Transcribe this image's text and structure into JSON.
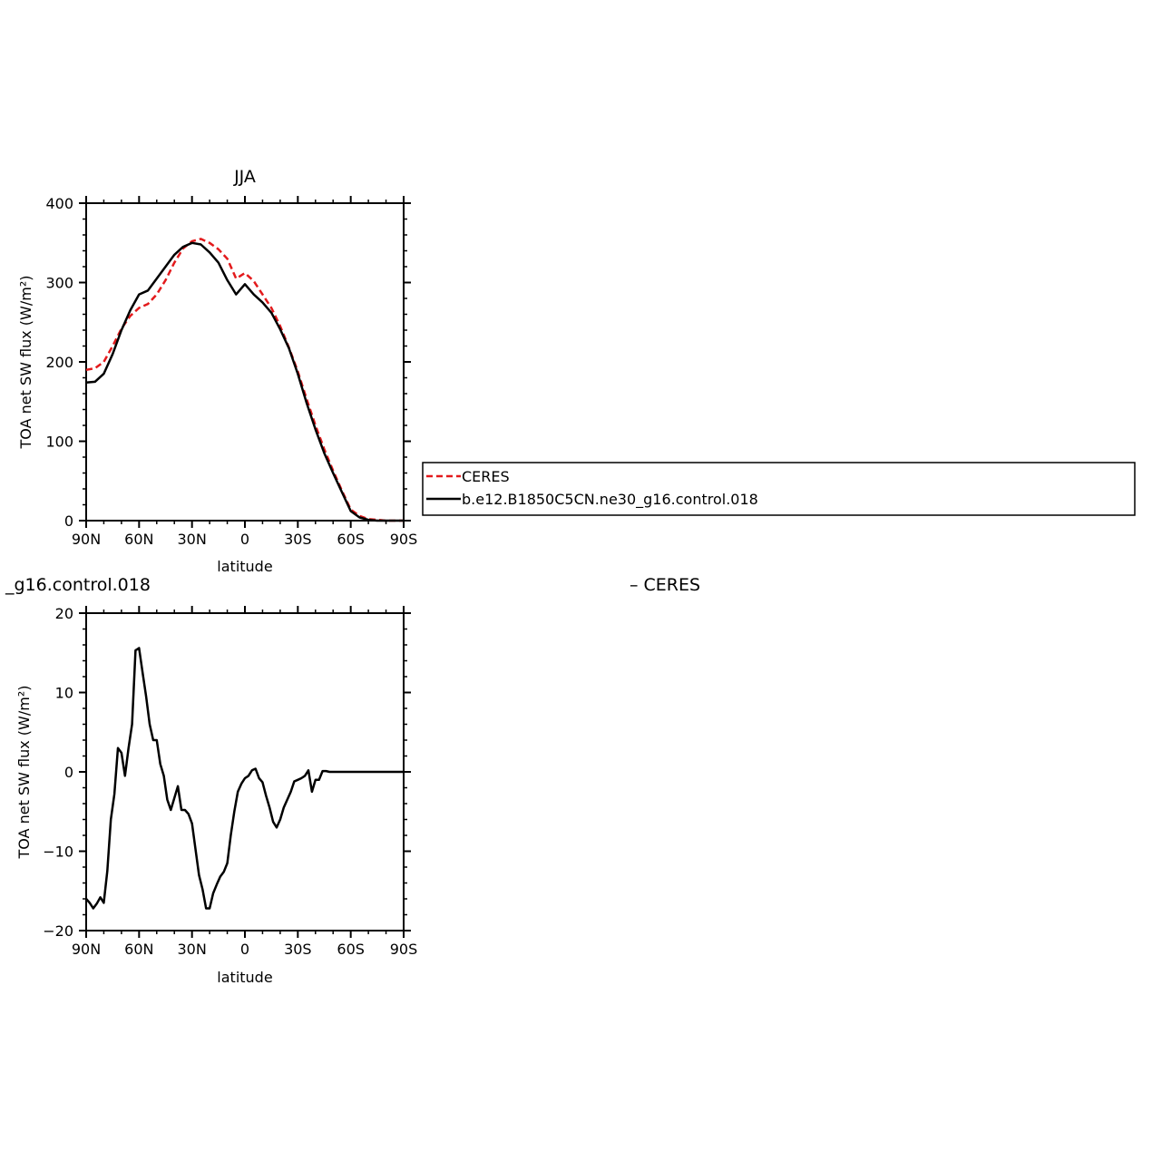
{
  "chart_data": [
    {
      "type": "line",
      "title": "JJA",
      "xlabel": "latitude",
      "ylabel": "TOA net SW flux (W/m²)",
      "xlim": [
        90,
        -90
      ],
      "ylim": [
        0,
        400
      ],
      "x_ticks": [
        {
          "value": 90,
          "label": "90N"
        },
        {
          "value": 60,
          "label": "60N"
        },
        {
          "value": 30,
          "label": "30N"
        },
        {
          "value": 0,
          "label": "0"
        },
        {
          "value": -30,
          "label": "30S"
        },
        {
          "value": -60,
          "label": "60S"
        },
        {
          "value": -90,
          "label": "90S"
        }
      ],
      "y_ticks": [
        {
          "value": 0,
          "label": "0"
        },
        {
          "value": 100,
          "label": "100"
        },
        {
          "value": 200,
          "label": "200"
        },
        {
          "value": 300,
          "label": "300"
        },
        {
          "value": 400,
          "label": "400"
        }
      ],
      "legend": {
        "placement": "right",
        "entries": [
          {
            "label": "CERES",
            "color": "#e31a1c",
            "dash": true
          },
          {
            "label": "b.e12.B1850C5CN.ne30_g16.control.018",
            "color": "#000000",
            "dash": false
          }
        ]
      },
      "series": [
        {
          "name": "CERES",
          "color": "#e31a1c",
          "dash": true,
          "x": [
            90,
            85,
            80,
            75,
            70,
            65,
            60,
            55,
            50,
            45,
            40,
            35,
            30,
            25,
            20,
            15,
            10,
            5,
            0,
            -5,
            -10,
            -15,
            -20,
            -25,
            -30,
            -35,
            -40,
            -45,
            -50,
            -55,
            -60,
            -65,
            -70,
            -75,
            -80,
            -85,
            -90
          ],
          "y": [
            190,
            192,
            200,
            220,
            242,
            258,
            268,
            273,
            285,
            303,
            325,
            343,
            352,
            355,
            350,
            342,
            330,
            305,
            312,
            302,
            285,
            268,
            245,
            218,
            188,
            153,
            120,
            90,
            63,
            38,
            14,
            6,
            2,
            1,
            0,
            0,
            0
          ]
        },
        {
          "name": "b.e12.B1850C5CN.ne30_g16.control.018",
          "color": "#000000",
          "dash": false,
          "x": [
            90,
            85,
            80,
            75,
            70,
            65,
            60,
            55,
            50,
            45,
            40,
            35,
            30,
            25,
            20,
            15,
            10,
            5,
            0,
            -5,
            -10,
            -15,
            -20,
            -25,
            -30,
            -35,
            -40,
            -45,
            -50,
            -55,
            -60,
            -65,
            -70,
            -75,
            -80,
            -85,
            -90
          ],
          "y": [
            174,
            175,
            185,
            210,
            240,
            265,
            285,
            290,
            305,
            320,
            335,
            345,
            350,
            348,
            338,
            325,
            303,
            285,
            298,
            285,
            275,
            262,
            241,
            217,
            185,
            148,
            115,
            85,
            60,
            36,
            12,
            4,
            1,
            0,
            0,
            0,
            0
          ]
        }
      ]
    },
    {
      "type": "line",
      "title": "_g16.control.018",
      "title_right": "– CERES",
      "xlabel": "latitude",
      "ylabel": "TOA net SW flux (W/m²)",
      "xlim": [
        90,
        -90
      ],
      "ylim": [
        -20,
        20
      ],
      "x_ticks": [
        {
          "value": 90,
          "label": "90N"
        },
        {
          "value": 60,
          "label": "60N"
        },
        {
          "value": 30,
          "label": "30N"
        },
        {
          "value": 0,
          "label": "0"
        },
        {
          "value": -30,
          "label": "30S"
        },
        {
          "value": -60,
          "label": "60S"
        },
        {
          "value": -90,
          "label": "90S"
        }
      ],
      "y_ticks": [
        {
          "value": -20,
          "label": "−20"
        },
        {
          "value": -10,
          "label": "−10"
        },
        {
          "value": 0,
          "label": "0"
        },
        {
          "value": 10,
          "label": "10"
        },
        {
          "value": 20,
          "label": "20"
        }
      ],
      "series": [
        {
          "name": "",
          "color": "#000000",
          "dash": false,
          "x": [
            90,
            88,
            86,
            84,
            82,
            80,
            78,
            76,
            74,
            72,
            70,
            68,
            66,
            64,
            62,
            60,
            58,
            56,
            54,
            52,
            50,
            48,
            46,
            44,
            42,
            40,
            38,
            36,
            34,
            32,
            30,
            28,
            26,
            24,
            22,
            20,
            18,
            16,
            14,
            12,
            10,
            8,
            6,
            4,
            2,
            0,
            -2,
            -4,
            -6,
            -8,
            -10,
            -12,
            -14,
            -16,
            -18,
            -20,
            -22,
            -24,
            -26,
            -28,
            -30,
            -32,
            -34,
            -36,
            -38,
            -40,
            -42,
            -44,
            -46,
            -48,
            -50,
            -52,
            -54,
            -56,
            -58,
            -60,
            -62,
            -64,
            -66,
            -68,
            -70,
            -72,
            -74,
            -76,
            -78,
            -80,
            -82,
            -84,
            -86,
            -88,
            -90
          ],
          "y": [
            -16,
            -16.5,
            -17.2,
            -16.6,
            -15.8,
            -16.5,
            -12.5,
            -6,
            -2.8,
            3,
            2.4,
            -0.5,
            3,
            6,
            15.3,
            15.6,
            12.5,
            9.5,
            6,
            4,
            4,
            1,
            -0.5,
            -3.5,
            -4.8,
            -3.3,
            -1.8,
            -4.8,
            -4.8,
            -5.3,
            -6.5,
            -9.8,
            -13,
            -14.8,
            -17.2,
            -17.2,
            -15.3,
            -14.2,
            -13.2,
            -12.6,
            -11.5,
            -8,
            -5,
            -2.5,
            -1.5,
            -0.8,
            -0.5,
            0.2,
            0.4,
            -0.8,
            -1.3,
            -3,
            -4.5,
            -6.3,
            -7,
            -6,
            -4.5,
            -3.5,
            -2.5,
            -1.2,
            -1,
            -0.8,
            -0.5,
            0.2,
            -2.5,
            -1,
            -1,
            0.1,
            0.1,
            0,
            0,
            0,
            0,
            0,
            0,
            0,
            0,
            0,
            0,
            0,
            0,
            0,
            0,
            0,
            0,
            0,
            0,
            0,
            0,
            0,
            0
          ]
        }
      ]
    }
  ]
}
